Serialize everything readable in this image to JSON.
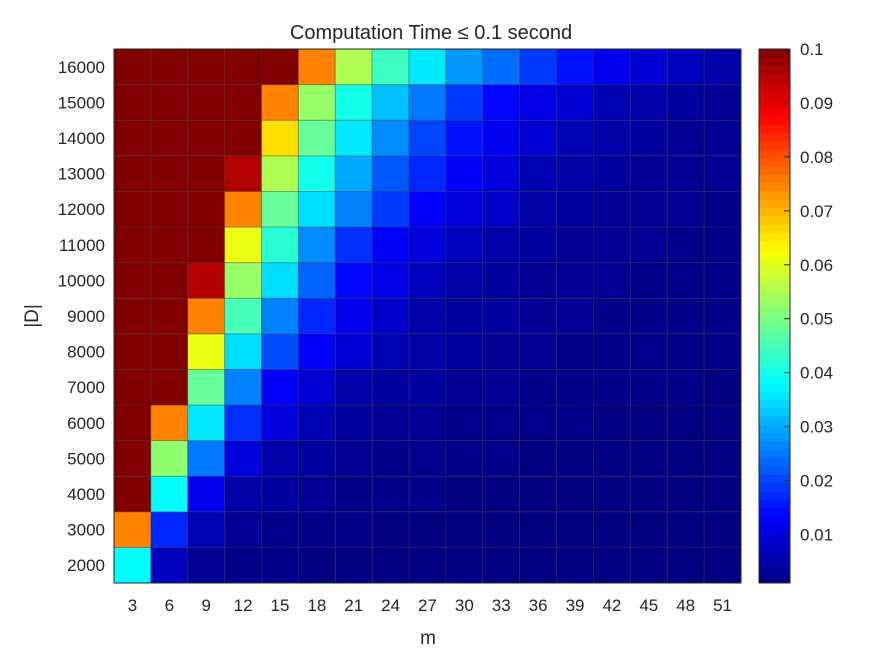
{
  "chart_data": {
    "type": "heatmap",
    "title": "Computation Time  ≤ 0.1 second",
    "xlabel": "m",
    "ylabel": "|D|",
    "x": [
      3,
      6,
      9,
      12,
      15,
      18,
      21,
      24,
      27,
      30,
      33,
      36,
      39,
      42,
      45,
      48,
      51
    ],
    "y": [
      2000,
      3000,
      4000,
      5000,
      6000,
      7000,
      8000,
      9000,
      10000,
      11000,
      12000,
      13000,
      14000,
      15000,
      16000
    ],
    "values_note_rows": "values[i] corresponds to y[i]; each row lists values across x",
    "values": [
      [
        0.038,
        0.007,
        0.003,
        0.002,
        0.002,
        0.001,
        0.001,
        0.001,
        0.001,
        0.001,
        0.001,
        0.001,
        0.001,
        0.001,
        0.001,
        0.001,
        0.001
      ],
      [
        0.075,
        0.017,
        0.006,
        0.003,
        0.002,
        0.002,
        0.002,
        0.001,
        0.001,
        0.001,
        0.001,
        0.001,
        0.001,
        0.001,
        0.001,
        0.001,
        0.001
      ],
      [
        0.1,
        0.038,
        0.012,
        0.005,
        0.004,
        0.003,
        0.002,
        0.002,
        0.002,
        0.001,
        0.001,
        0.001,
        0.001,
        0.001,
        0.001,
        0.001,
        0.001
      ],
      [
        0.1,
        0.052,
        0.025,
        0.01,
        0.005,
        0.004,
        0.003,
        0.002,
        0.002,
        0.002,
        0.002,
        0.001,
        0.001,
        0.001,
        0.001,
        0.001,
        0.001
      ],
      [
        0.1,
        0.075,
        0.036,
        0.018,
        0.01,
        0.006,
        0.004,
        0.003,
        0.003,
        0.002,
        0.002,
        0.002,
        0.002,
        0.001,
        0.001,
        0.001,
        0.001
      ],
      [
        0.1,
        0.1,
        0.048,
        0.026,
        0.013,
        0.009,
        0.005,
        0.004,
        0.004,
        0.003,
        0.003,
        0.002,
        0.002,
        0.002,
        0.002,
        0.002,
        0.001
      ],
      [
        0.1,
        0.1,
        0.061,
        0.035,
        0.021,
        0.013,
        0.009,
        0.006,
        0.005,
        0.004,
        0.003,
        0.003,
        0.002,
        0.002,
        0.002,
        0.002,
        0.002
      ],
      [
        0.1,
        0.1,
        0.075,
        0.045,
        0.026,
        0.017,
        0.012,
        0.008,
        0.005,
        0.004,
        0.004,
        0.003,
        0.003,
        0.002,
        0.002,
        0.002,
        0.002
      ],
      [
        0.1,
        0.1,
        0.095,
        0.053,
        0.035,
        0.023,
        0.014,
        0.011,
        0.007,
        0.005,
        0.004,
        0.003,
        0.003,
        0.003,
        0.002,
        0.002,
        0.002
      ],
      [
        0.1,
        0.1,
        0.1,
        0.061,
        0.042,
        0.027,
        0.018,
        0.013,
        0.01,
        0.007,
        0.005,
        0.004,
        0.003,
        0.003,
        0.003,
        0.002,
        0.002
      ],
      [
        0.1,
        0.1,
        0.1,
        0.075,
        0.048,
        0.035,
        0.026,
        0.019,
        0.013,
        0.01,
        0.008,
        0.005,
        0.004,
        0.003,
        0.003,
        0.003,
        0.002
      ],
      [
        0.1,
        0.1,
        0.1,
        0.095,
        0.055,
        0.04,
        0.03,
        0.022,
        0.017,
        0.013,
        0.01,
        0.006,
        0.005,
        0.004,
        0.003,
        0.003,
        0.003
      ],
      [
        0.1,
        0.1,
        0.1,
        0.1,
        0.066,
        0.048,
        0.036,
        0.027,
        0.02,
        0.015,
        0.012,
        0.009,
        0.006,
        0.005,
        0.004,
        0.003,
        0.003
      ],
      [
        0.1,
        0.1,
        0.1,
        0.1,
        0.075,
        0.053,
        0.04,
        0.032,
        0.025,
        0.019,
        0.014,
        0.011,
        0.009,
        0.006,
        0.005,
        0.004,
        0.003
      ],
      [
        0.1,
        0.1,
        0.1,
        0.1,
        0.1,
        0.075,
        0.055,
        0.044,
        0.036,
        0.028,
        0.024,
        0.019,
        0.015,
        0.012,
        0.009,
        0.007,
        0.005
      ]
    ],
    "colorbar": {
      "colormap": "jet",
      "min": 0.001,
      "max": 0.1,
      "ticks": [
        0.01,
        0.02,
        0.03,
        0.04,
        0.05,
        0.06,
        0.07,
        0.08,
        0.09,
        0.1
      ],
      "tick_labels": [
        "0.01",
        "0.02",
        "0.03",
        "0.04",
        "0.05",
        "0.06",
        "0.07",
        "0.08",
        "0.09",
        "0.1"
      ]
    },
    "grid": true,
    "legend": "colorbar-right"
  }
}
